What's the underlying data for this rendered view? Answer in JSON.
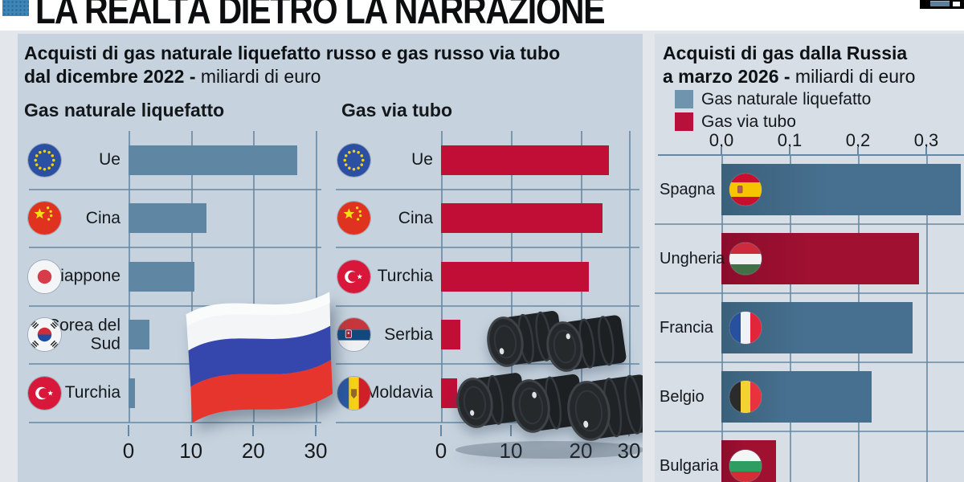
{
  "header": {
    "title": "LA REALTÀ DIETRO LA NARRAZIONE"
  },
  "panels": {
    "left": {
      "title_line1": "Acquisti di gas naturale liquefatto russo e gas russo via tubo",
      "title_line2_bold": "dal dicembre 2022 -",
      "title_line2_regular": "miliardi di euro"
    },
    "right": {
      "title_line1": "Acquisti di gas dalla Russia",
      "title_line2_bold": "a marzo 2026 -",
      "title_line2_regular": "miliardi di euro",
      "legend": [
        {
          "label": "Gas naturale liquefatto",
          "color": "#6f94ad"
        },
        {
          "label": "Gas via tubo",
          "color": "#b8103a"
        }
      ]
    }
  },
  "chart_data": [
    {
      "id": "lng",
      "type": "bar",
      "orientation": "horizontal",
      "title": "Gas naturale liquefatto",
      "subtitle": "Acquisti di gas naturale liquefatto russo dal dicembre 2022",
      "unit": "miliardi di euro",
      "categories": [
        "Ue",
        "Cina",
        "Giappone",
        "Corea del Sud",
        "Turchia"
      ],
      "values": [
        27,
        12.5,
        10.5,
        3.3,
        1
      ],
      "flags": [
        "eu",
        "cn",
        "jp",
        "kr",
        "tr"
      ],
      "bar_color": "#5f87a4",
      "xlim": [
        0,
        30
      ],
      "tick_labels": [
        "0",
        "10",
        "20",
        "30"
      ],
      "grid": "vertical"
    },
    {
      "id": "pipe",
      "type": "bar",
      "orientation": "horizontal",
      "title": "Gas via tubo",
      "subtitle": "Acquisti di gas russo via tubo dal dicembre 2022",
      "unit": "miliardi di euro",
      "categories": [
        "Ue",
        "Cina",
        "Turchia",
        "Serbia",
        "Moldavia"
      ],
      "values": [
        24.5,
        23.5,
        21.5,
        2.8,
        2.3
      ],
      "flags": [
        "eu",
        "cn",
        "tr",
        "rs",
        "md"
      ],
      "bar_color": "#c00e36",
      "xlim": [
        0,
        30
      ],
      "tick_labels": [
        "0",
        "10",
        "20",
        "30"
      ],
      "grid": "vertical"
    },
    {
      "id": "russia2026",
      "type": "bar",
      "orientation": "horizontal",
      "title": "Acquisti di gas dalla Russia a marzo 2026",
      "unit": "miliardi di euro",
      "categories": [
        "Spagna",
        "Ungheria",
        "Francia",
        "Belgio",
        "Bulgaria"
      ],
      "values": [
        0.35,
        0.29,
        0.28,
        0.22,
        0.08
      ],
      "row_series": [
        "Gas naturale liquefatto",
        "Gas via tubo",
        "Gas naturale liquefatto",
        "Gas naturale liquefatto",
        "Gas via tubo"
      ],
      "flags": [
        "es",
        "hu",
        "fr",
        "be",
        "bg"
      ],
      "series_colors": {
        "Gas naturale liquefatto": "#477090",
        "Gas via tubo": "#a01031"
      },
      "xlim": [
        0,
        0.3
      ],
      "tick_labels": [
        "0,0",
        "0,1",
        "0,2",
        "0,3"
      ],
      "legend_position": "top",
      "grid": "vertical"
    }
  ]
}
